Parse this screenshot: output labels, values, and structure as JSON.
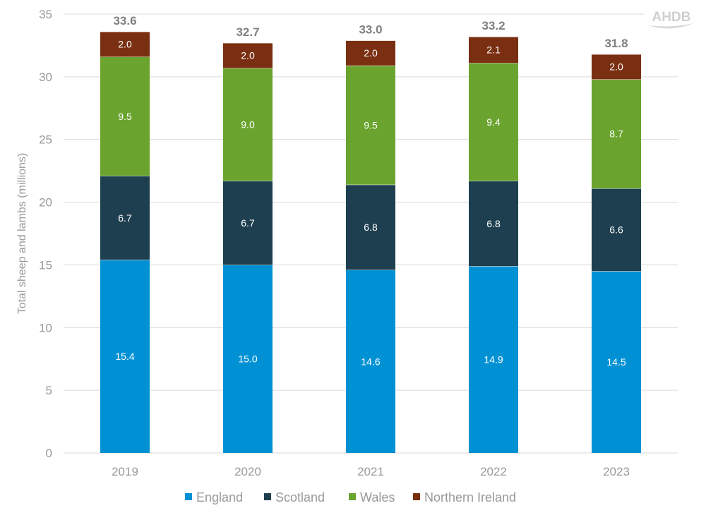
{
  "logo": "AHDB",
  "chart_data": {
    "type": "bar",
    "stacked": true,
    "categories": [
      "2019",
      "2020",
      "2021",
      "2022",
      "2023"
    ],
    "series": [
      {
        "name": "England",
        "color": "#0091d5",
        "values": [
          15.4,
          15.0,
          14.6,
          14.9,
          14.5
        ]
      },
      {
        "name": "Scotland",
        "color": "#1e3f4f",
        "values": [
          6.7,
          6.7,
          6.8,
          6.8,
          6.6
        ]
      },
      {
        "name": "Wales",
        "color": "#6aa42f",
        "values": [
          9.5,
          9.0,
          9.5,
          9.4,
          8.7
        ]
      },
      {
        "name": "Northern Ireland",
        "color": "#7a2f12",
        "values": [
          2.0,
          2.0,
          2.0,
          2.1,
          2.0
        ]
      }
    ],
    "totals": [
      "33.6",
      "32.7",
      "33.0",
      "33.2",
      "31.8"
    ],
    "title": "",
    "xlabel": "",
    "ylabel": "Total sheep and lambs (millions)",
    "ylim": [
      0,
      35
    ],
    "yticks": [
      0,
      5,
      10,
      15,
      20,
      25,
      30,
      35
    ],
    "grid": true,
    "legend": "bottom"
  }
}
